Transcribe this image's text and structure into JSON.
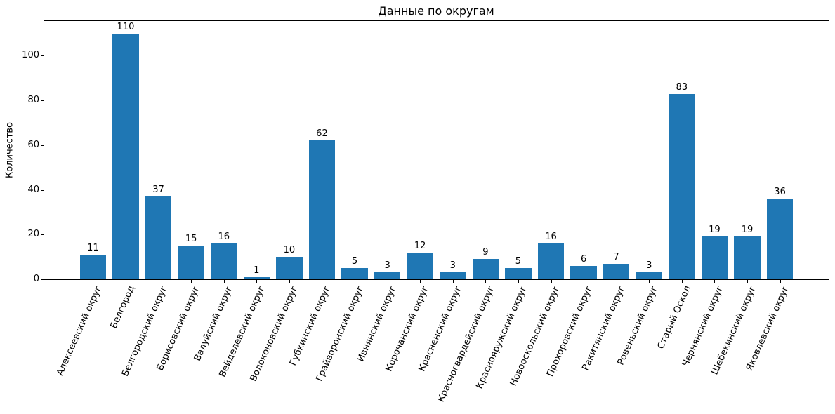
{
  "chart_data": {
    "type": "bar",
    "title": "Данные по округам",
    "xlabel": "",
    "ylabel": "Количество",
    "categories": [
      "Алексеевский округ",
      "Белгород",
      "Белгородский округ",
      "Борисовский округ",
      "Валуйский округ",
      "Вейделевский округ",
      "Волоконовский округ",
      "Губкинский округ",
      "Грайворонский округ",
      "Ивнянский округ",
      "Корочанский округ",
      "Красненский округ",
      "Красногвардейский округ",
      "Краснояружский округ",
      "Новооскольский округ",
      "Прохоровский округ",
      "Ракитянский округ",
      "Ровеньский округ",
      "Старый Оскол",
      "Чернянский округ",
      "Шебекинский округ",
      "Яковлевский округ"
    ],
    "values": [
      11,
      110,
      37,
      15,
      16,
      1,
      10,
      62,
      5,
      3,
      12,
      3,
      9,
      5,
      16,
      6,
      7,
      3,
      83,
      19,
      19,
      36
    ],
    "value_labels_shown": true,
    "yticks": [
      0,
      20,
      40,
      60,
      80,
      100
    ],
    "ylim": [
      0,
      115.5
    ],
    "grid": false,
    "legend": null,
    "bar_color": "#1f77b4",
    "text_color": "#000000",
    "background_color": "#ffffff"
  }
}
